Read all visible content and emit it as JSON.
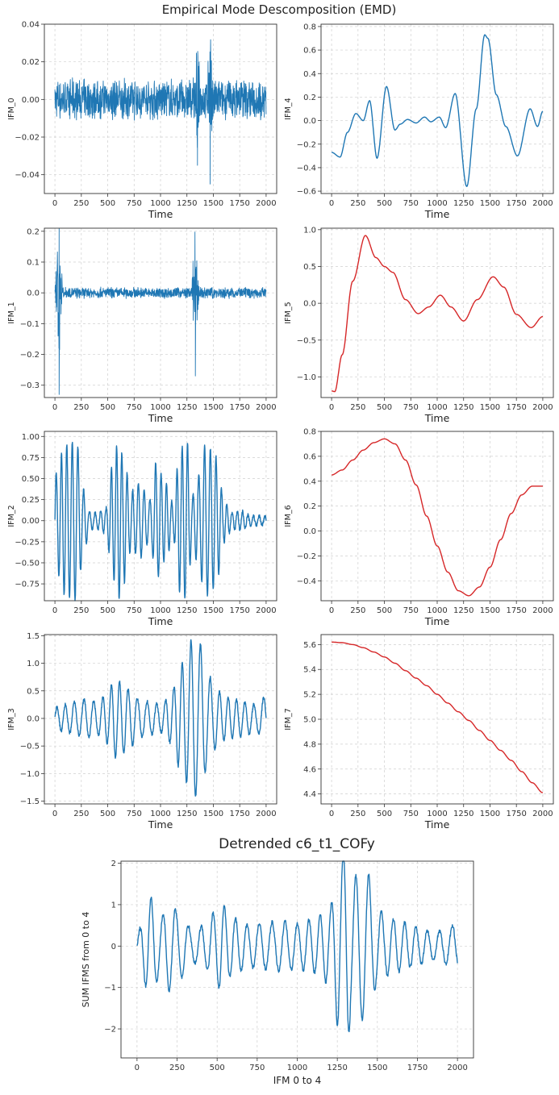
{
  "figure": {
    "suptitle": "Empirical Mode Descomposition (EMD)",
    "bottom_title": "Detrended c6_t1_COFy"
  },
  "chart_data": [
    {
      "type": "line",
      "xlabel": "Time",
      "ylabel": "IFM_0",
      "xlim": [
        -100,
        2100
      ],
      "ylim": [
        -0.05,
        0.04
      ],
      "xticks": [
        0,
        250,
        500,
        750,
        1000,
        1250,
        1500,
        1750,
        2000
      ],
      "xtick_labels": [
        "0",
        "250",
        "500",
        "750",
        "1000",
        "1250",
        "1500",
        "1750",
        "2000"
      ],
      "yticks": [
        -0.04,
        -0.02,
        0.0,
        0.02,
        0.04
      ],
      "ytick_labels": [
        "−0.04",
        "−0.02",
        "0.00",
        "0.02",
        "0.04"
      ],
      "grid": true,
      "color": "#1f77b4",
      "series": [
        {
          "style": "noise",
          "base_amplitude": 0.009,
          "bursts": [
            {
              "x": 1350,
              "amplitude": 0.035
            },
            {
              "x": 1470,
              "amplitude": 0.045
            }
          ],
          "x_range": [
            0,
            2000
          ]
        }
      ]
    },
    {
      "type": "line",
      "xlabel": "Time",
      "ylabel": "IFM_4",
      "xlim": [
        -100,
        2100
      ],
      "ylim": [
        -0.62,
        0.82
      ],
      "xticks": [
        0,
        250,
        500,
        750,
        1000,
        1250,
        1500,
        1750,
        2000
      ],
      "xtick_labels": [
        "0",
        "250",
        "500",
        "750",
        "1000",
        "1250",
        "1500",
        "1750",
        "2000"
      ],
      "yticks": [
        -0.6,
        -0.4,
        -0.2,
        0.0,
        0.2,
        0.4,
        0.6,
        0.8
      ],
      "ytick_labels": [
        "−0.6",
        "−0.4",
        "−0.2",
        "0.0",
        "0.2",
        "0.4",
        "0.6",
        "0.8"
      ],
      "grid": true,
      "color": "#1f77b4",
      "series": [
        {
          "style": "smooth",
          "x": [
            0,
            80,
            150,
            230,
            300,
            360,
            430,
            520,
            600,
            650,
            720,
            800,
            880,
            940,
            1020,
            1080,
            1170,
            1280,
            1370,
            1450,
            1480,
            1560,
            1650,
            1760,
            1880,
            1950,
            2000
          ],
          "y": [
            -0.27,
            -0.31,
            -0.1,
            0.06,
            0.0,
            0.17,
            -0.32,
            0.29,
            -0.08,
            -0.03,
            0.01,
            -0.02,
            0.03,
            -0.01,
            0.03,
            -0.06,
            0.23,
            -0.56,
            0.1,
            0.73,
            0.7,
            0.22,
            -0.05,
            -0.3,
            0.1,
            -0.05,
            0.08
          ]
        }
      ]
    },
    {
      "type": "line",
      "xlabel": "Time",
      "ylabel": "IFM_1",
      "xlim": [
        -100,
        2100
      ],
      "ylim": [
        -0.34,
        0.21
      ],
      "xticks": [
        0,
        250,
        500,
        750,
        1000,
        1250,
        1500,
        1750,
        2000
      ],
      "xtick_labels": [
        "0",
        "250",
        "500",
        "750",
        "1000",
        "1250",
        "1500",
        "1750",
        "2000"
      ],
      "yticks": [
        -0.3,
        -0.2,
        -0.1,
        0.0,
        0.1,
        0.2
      ],
      "ytick_labels": [
        "−0.3",
        "−0.2",
        "−0.1",
        "0.0",
        "0.1",
        "0.2"
      ],
      "grid": true,
      "color": "#1f77b4",
      "series": [
        {
          "style": "noise",
          "base_amplitude": 0.015,
          "bursts": [
            {
              "x": 40,
              "amplitude": 0.33
            },
            {
              "x": 1330,
              "amplitude": 0.27
            }
          ],
          "x_range": [
            0,
            2000
          ]
        }
      ]
    },
    {
      "type": "line",
      "xlabel": "Time",
      "ylabel": "IFM_5",
      "xlim": [
        -100,
        2100
      ],
      "ylim": [
        -1.28,
        1.02
      ],
      "xticks": [
        0,
        250,
        500,
        750,
        1000,
        1250,
        1500,
        1750,
        2000
      ],
      "xtick_labels": [
        "0",
        "250",
        "500",
        "750",
        "1000",
        "1250",
        "1500",
        "1750",
        "2000"
      ],
      "yticks": [
        -1.0,
        -0.5,
        0.0,
        0.5,
        1.0
      ],
      "ytick_labels": [
        "−1.0",
        "−0.5",
        "0.0",
        "0.5",
        "1.0"
      ],
      "grid": true,
      "color": "#d62728",
      "series": [
        {
          "style": "smooth",
          "x": [
            0,
            30,
            100,
            200,
            320,
            420,
            500,
            580,
            700,
            820,
            920,
            1030,
            1130,
            1250,
            1380,
            1530,
            1630,
            1750,
            1890,
            2000
          ],
          "y": [
            -1.19,
            -1.2,
            -0.7,
            0.3,
            0.92,
            0.62,
            0.5,
            0.42,
            0.05,
            -0.14,
            -0.05,
            0.11,
            -0.05,
            -0.24,
            0.05,
            0.36,
            0.22,
            -0.15,
            -0.33,
            -0.18
          ]
        }
      ]
    },
    {
      "type": "line",
      "xlabel": "Time",
      "ylabel": "IFM_2",
      "xlim": [
        -100,
        2100
      ],
      "ylim": [
        -0.95,
        1.06
      ],
      "xticks": [
        0,
        250,
        500,
        750,
        1000,
        1250,
        1500,
        1750,
        2000
      ],
      "xtick_labels": [
        "0",
        "250",
        "500",
        "750",
        "1000",
        "1250",
        "1500",
        "1750",
        "2000"
      ],
      "yticks": [
        -0.75,
        -0.5,
        -0.25,
        0.0,
        0.25,
        0.5,
        0.75,
        1.0
      ],
      "ytick_labels": [
        "−0.75",
        "−0.50",
        "−0.25",
        "0.00",
        "0.25",
        "0.50",
        "0.75",
        "1.00"
      ],
      "grid": true,
      "color": "#1f77b4",
      "series": [
        {
          "style": "oscillation",
          "period": 52,
          "baseline_amplitude": 0.04,
          "x_range": [
            0,
            2000
          ],
          "envelope": {
            "x": [
              0,
              100,
              200,
              280,
              330,
              400,
              480,
              550,
              600,
              650,
              720,
              800,
              900,
              960,
              1050,
              1120,
              1180,
              1250,
              1300,
              1360,
              1420,
              1480,
              1530,
              1600,
              1680,
              1750,
              1850,
              2000
            ],
            "y": [
              0.55,
              0.9,
              0.95,
              0.35,
              0.1,
              0.1,
              0.15,
              0.7,
              0.95,
              0.75,
              0.35,
              0.45,
              0.25,
              0.7,
              0.45,
              0.2,
              0.85,
              0.95,
              0.3,
              0.55,
              0.9,
              0.85,
              0.75,
              0.25,
              0.1,
              0.12,
              0.06,
              0.05
            ]
          }
        }
      ]
    },
    {
      "type": "line",
      "xlabel": "Time",
      "ylabel": "IFM_6",
      "xlim": [
        -100,
        2100
      ],
      "ylim": [
        -0.56,
        0.8
      ],
      "xticks": [
        0,
        250,
        500,
        750,
        1000,
        1250,
        1500,
        1750,
        2000
      ],
      "xtick_labels": [
        "0",
        "250",
        "500",
        "750",
        "1000",
        "1250",
        "1500",
        "1750",
        "2000"
      ],
      "yticks": [
        -0.4,
        -0.2,
        0.0,
        0.2,
        0.4,
        0.6,
        0.8
      ],
      "ytick_labels": [
        "−0.4",
        "−0.2",
        "0.0",
        "0.2",
        "0.4",
        "0.6",
        "0.8"
      ],
      "grid": true,
      "color": "#d62728",
      "series": [
        {
          "style": "smooth",
          "x": [
            0,
            100,
            200,
            300,
            400,
            500,
            600,
            700,
            800,
            900,
            1000,
            1100,
            1200,
            1300,
            1400,
            1500,
            1600,
            1700,
            1800,
            1900,
            2000
          ],
          "y": [
            0.45,
            0.49,
            0.57,
            0.65,
            0.71,
            0.74,
            0.7,
            0.57,
            0.37,
            0.12,
            -0.12,
            -0.33,
            -0.48,
            -0.52,
            -0.45,
            -0.29,
            -0.07,
            0.14,
            0.29,
            0.36,
            0.36
          ]
        }
      ]
    },
    {
      "type": "line",
      "xlabel": "Time",
      "ylabel": "IFM_3",
      "xlim": [
        -100,
        2100
      ],
      "ylim": [
        -1.55,
        1.52
      ],
      "xticks": [
        0,
        250,
        500,
        750,
        1000,
        1250,
        1500,
        1750,
        2000
      ],
      "xtick_labels": [
        "0",
        "250",
        "500",
        "750",
        "1000",
        "1250",
        "1500",
        "1750",
        "2000"
      ],
      "yticks": [
        -1.5,
        -1.0,
        -0.5,
        0.0,
        0.5,
        1.0,
        1.5
      ],
      "ytick_labels": [
        "−1.5",
        "−1.0",
        "−0.5",
        "0.0",
        "0.5",
        "1.0",
        "1.5"
      ],
      "grid": true,
      "color": "#1f77b4",
      "series": [
        {
          "style": "oscillation",
          "period": 85,
          "baseline_amplitude": 0.06,
          "x_range": [
            0,
            2000
          ],
          "envelope": {
            "x": [
              0,
              100,
              200,
              300,
              400,
              500,
              560,
              640,
              720,
              800,
              900,
              1000,
              1100,
              1180,
              1240,
              1300,
              1380,
              1450,
              1520,
              1600,
              1700,
              1800,
              1900,
              2000
            ],
            "y": [
              0.2,
              0.25,
              0.3,
              0.35,
              0.3,
              0.45,
              0.7,
              0.65,
              0.5,
              0.35,
              0.3,
              0.25,
              0.45,
              0.9,
              1.15,
              1.45,
              1.35,
              0.8,
              0.55,
              0.4,
              0.35,
              0.3,
              0.25,
              0.4
            ]
          }
        }
      ]
    },
    {
      "type": "line",
      "xlabel": "Time",
      "ylabel": "IFM_7",
      "xlim": [
        -100,
        2100
      ],
      "ylim": [
        4.32,
        5.68
      ],
      "xticks": [
        0,
        250,
        500,
        750,
        1000,
        1250,
        1500,
        1750,
        2000
      ],
      "xtick_labels": [
        "0",
        "250",
        "500",
        "750",
        "1000",
        "1250",
        "1500",
        "1750",
        "2000"
      ],
      "yticks": [
        4.4,
        4.6,
        4.8,
        5.0,
        5.2,
        5.4,
        5.6
      ],
      "ytick_labels": [
        "4.4",
        "4.6",
        "4.8",
        "5.0",
        "5.2",
        "5.4",
        "5.6"
      ],
      "grid": true,
      "color": "#d62728",
      "series": [
        {
          "style": "smooth",
          "x": [
            0,
            100,
            200,
            300,
            400,
            500,
            600,
            700,
            800,
            900,
            1000,
            1100,
            1200,
            1300,
            1400,
            1500,
            1600,
            1700,
            1800,
            1900,
            2000
          ],
          "y": [
            5.62,
            5.615,
            5.6,
            5.575,
            5.54,
            5.5,
            5.45,
            5.39,
            5.33,
            5.27,
            5.2,
            5.13,
            5.06,
            4.99,
            4.91,
            4.83,
            4.75,
            4.67,
            4.58,
            4.49,
            4.41
          ]
        }
      ]
    },
    {
      "type": "line",
      "xlabel": "IFM 0 to 4",
      "ylabel": "SUM IFMS from 0 to 4",
      "xlim": [
        -100,
        2100
      ],
      "ylim": [
        -2.7,
        2.05
      ],
      "xticks": [
        0,
        250,
        500,
        750,
        1000,
        1250,
        1500,
        1750,
        2000
      ],
      "xtick_labels": [
        "0",
        "250",
        "500",
        "750",
        "1000",
        "1250",
        "1500",
        "1750",
        "2000"
      ],
      "yticks": [
        -2,
        -1,
        0,
        1,
        2
      ],
      "ytick_labels": [
        "−2",
        "−1",
        "0",
        "1",
        "2"
      ],
      "grid": true,
      "color": "#1f77b4",
      "series": [
        {
          "style": "oscillation",
          "period": 75,
          "baseline_amplitude": 0.1,
          "x_range": [
            0,
            2000
          ],
          "envelope": {
            "x": [
              0,
              80,
              150,
              200,
              260,
              350,
              420,
              480,
              520,
              600,
              700,
              800,
              900,
              1000,
              1100,
              1200,
              1260,
              1310,
              1340,
              1380,
              1440,
              1500,
              1560,
              1650,
              1750,
              1850,
              2000
            ],
            "y": [
              0.3,
              1.2,
              0.7,
              1.1,
              0.8,
              0.4,
              0.5,
              0.8,
              1.05,
              0.7,
              0.5,
              0.55,
              0.6,
              0.55,
              0.65,
              0.9,
              2.0,
              2.5,
              1.5,
              1.8,
              1.75,
              0.9,
              0.7,
              0.6,
              0.45,
              0.35,
              0.5
            ]
          }
        }
      ]
    }
  ]
}
